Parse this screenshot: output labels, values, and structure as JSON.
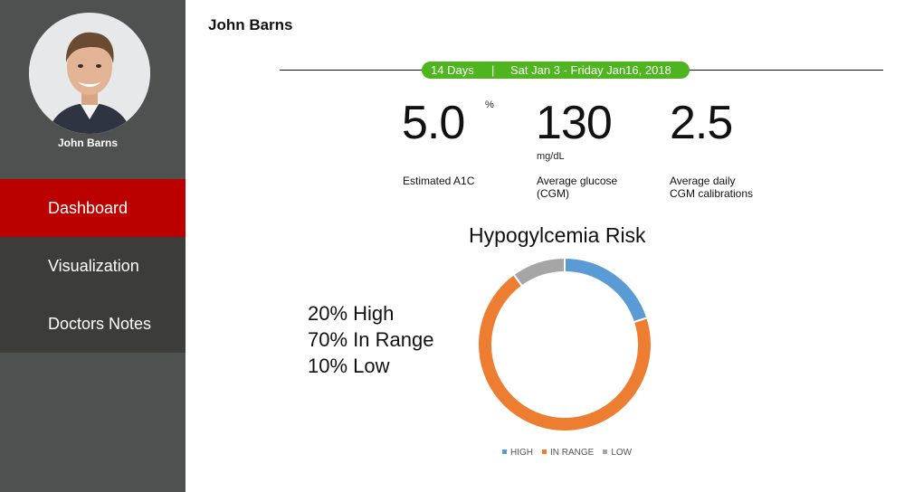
{
  "sidebar": {
    "profile_name": "John Barns",
    "nav": [
      {
        "label": "Dashboard",
        "active": true
      },
      {
        "label": "Visualization",
        "active": false
      },
      {
        "label": "Doctors Notes",
        "active": false
      }
    ]
  },
  "header": {
    "patient_name": "John Barns"
  },
  "period": {
    "days": "14 Days",
    "separator": "|",
    "range": "Sat Jan 3 - Friday Jan16, 2018"
  },
  "stats": [
    {
      "value": "5.0",
      "unit": "%",
      "label": "Estimated A1C"
    },
    {
      "value": "130",
      "unit": "mg/dL",
      "label": "Average glucose\n(CGM)"
    },
    {
      "value": "2.5",
      "unit": "",
      "label": "Average daily\nCGM calibrations"
    }
  ],
  "risk_summary": [
    "20% High",
    "70% In Range",
    "10% Low"
  ],
  "colors": {
    "sidebar": "#4f5150",
    "active_nav": "#bb0000",
    "nav": "#3c3d3b",
    "pill": "#4eb51e"
  },
  "chart_data": {
    "type": "pie",
    "title": "Hypogylcemia Risk",
    "categories": [
      "HIGH",
      "IN RANGE",
      "LOW"
    ],
    "values": [
      20,
      70,
      10
    ],
    "colors": [
      "#5b9bd5",
      "#ed7d31",
      "#a5a5a5"
    ],
    "legend": "bottom"
  }
}
